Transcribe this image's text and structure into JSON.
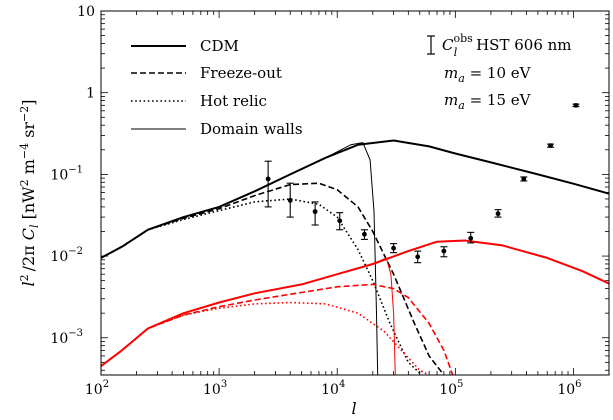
{
  "chart_data": {
    "type": "line",
    "xscale": "log",
    "yscale": "log",
    "xlim": [
      100,
      2000000
    ],
    "ylim": [
      0.00035,
      10
    ],
    "xlabel": "l",
    "ylabel": "l²/2π C_l [nW² m⁻⁴ sr⁻²]",
    "x_ticks": [
      {
        "value": 100,
        "label": "10",
        "exp": "2"
      },
      {
        "value": 1000,
        "label": "10",
        "exp": "3"
      },
      {
        "value": 10000,
        "label": "10",
        "exp": "4"
      },
      {
        "value": 100000,
        "label": "10",
        "exp": "5"
      },
      {
        "value": 1000000,
        "label": "10",
        "exp": "6"
      }
    ],
    "y_ticks": [
      {
        "value": 0.001,
        "label": "10",
        "exp": "−3"
      },
      {
        "value": 0.01,
        "label": "10",
        "exp": "−2"
      },
      {
        "value": 0.1,
        "label": "10",
        "exp": "−1"
      },
      {
        "value": 1,
        "label": "1",
        "exp": ""
      },
      {
        "value": 10,
        "label": "10",
        "exp": ""
      }
    ],
    "legend": {
      "placement": "top-left",
      "items": [
        {
          "label": "CDM",
          "style": "solid-thick"
        },
        {
          "label": "Freeze-out",
          "style": "dashed"
        },
        {
          "label": "Hot relic",
          "style": "dotted"
        },
        {
          "label": "Domain walls",
          "style": "solid-thin"
        }
      ]
    },
    "annotations": {
      "obs_label_base": "C",
      "obs_label_sup": "obs",
      "obs_label_sub": "l",
      "obs_label_rest": " HST 606 nm",
      "ma10_var": "m",
      "ma10_sub": "a",
      "ma10_rest": " = 10 eV",
      "ma15_var": "m",
      "ma15_sub": "a",
      "ma15_rest": " = 15 eV",
      "ma15_color": "#ff0000"
    },
    "series": [
      {
        "group": "10eV",
        "model": "CDM",
        "color": "#000000",
        "x": [
          100,
          150,
          250,
          500,
          1000,
          2000,
          4000,
          8000,
          15000,
          30000,
          60000,
          100000,
          200000,
          500000,
          1000000,
          2000000
        ],
        "y": [
          0.0095,
          0.013,
          0.021,
          0.03,
          0.04,
          0.062,
          0.1,
          0.16,
          0.23,
          0.26,
          0.22,
          0.18,
          0.14,
          0.1,
          0.077,
          0.058
        ]
      },
      {
        "group": "10eV",
        "model": "Freeze-out",
        "color": "#000000",
        "x": [
          100,
          150,
          250,
          500,
          1000,
          2000,
          4000,
          7000,
          10000,
          15000,
          20000,
          30000,
          45000,
          60000,
          80000
        ],
        "y": [
          0.0095,
          0.013,
          0.021,
          0.029,
          0.038,
          0.055,
          0.075,
          0.078,
          0.065,
          0.04,
          0.02,
          0.006,
          0.0015,
          0.0006,
          0.00035
        ]
      },
      {
        "group": "10eV",
        "model": "Hot relic",
        "color": "#000000",
        "x": [
          100,
          150,
          250,
          500,
          1000,
          2000,
          4000,
          7000,
          10000,
          15000,
          20000,
          28000,
          40000,
          52000
        ],
        "y": [
          0.0095,
          0.013,
          0.021,
          0.028,
          0.036,
          0.046,
          0.05,
          0.043,
          0.03,
          0.012,
          0.005,
          0.0015,
          0.0005,
          0.00035
        ]
      },
      {
        "group": "10eV",
        "model": "Domain walls",
        "color": "#000000",
        "x": [
          100,
          150,
          250,
          500,
          1000,
          2000,
          4000,
          8000,
          13000,
          16500,
          19000,
          20500,
          21500,
          22000
        ],
        "y": [
          0.0095,
          0.013,
          0.021,
          0.03,
          0.04,
          0.062,
          0.1,
          0.16,
          0.23,
          0.245,
          0.15,
          0.035,
          0.002,
          0.00035
        ]
      },
      {
        "group": "15eV",
        "model": "CDM",
        "color": "#ff0000",
        "x": [
          100,
          150,
          250,
          500,
          1000,
          2000,
          5000,
          10000,
          20000,
          40000,
          70000,
          120000,
          250000,
          600000,
          1200000,
          2000000
        ],
        "y": [
          0.00045,
          0.0007,
          0.0013,
          0.002,
          0.0027,
          0.0035,
          0.0045,
          0.006,
          0.008,
          0.0115,
          0.015,
          0.0155,
          0.0135,
          0.0095,
          0.0065,
          0.0046
        ]
      },
      {
        "group": "15eV",
        "model": "Freeze-out",
        "color": "#ff0000",
        "x": [
          100,
          150,
          250,
          500,
          1000,
          2000,
          4000,
          10000,
          20000,
          30000,
          40000,
          60000,
          80000,
          95000
        ],
        "y": [
          0.00045,
          0.0007,
          0.0013,
          0.0019,
          0.0024,
          0.0029,
          0.0034,
          0.0042,
          0.0045,
          0.004,
          0.0031,
          0.0015,
          0.0007,
          0.00035
        ]
      },
      {
        "group": "15eV",
        "model": "Hot relic",
        "color": "#ff0000",
        "x": [
          100,
          150,
          250,
          500,
          1000,
          2000,
          4000,
          8000,
          15000,
          25000,
          35000,
          50000,
          60000
        ],
        "y": [
          0.00045,
          0.0007,
          0.0013,
          0.0019,
          0.0023,
          0.0026,
          0.0027,
          0.0026,
          0.002,
          0.0012,
          0.0007,
          0.0004,
          0.00035
        ]
      },
      {
        "group": "15eV",
        "model": "Domain walls",
        "color": "#ff0000",
        "x": [
          100,
          150,
          250,
          500,
          1000,
          2000,
          5000,
          10000,
          20000,
          26000,
          28500,
          30000,
          31000
        ],
        "y": [
          0.00045,
          0.0007,
          0.0013,
          0.002,
          0.0027,
          0.0035,
          0.0045,
          0.006,
          0.008,
          0.0095,
          0.006,
          0.002,
          0.00035
        ]
      }
    ],
    "observations": {
      "name": "C_l^obs HST 606 nm",
      "points": [
        {
          "x": 2600,
          "y": 0.088,
          "ylo": 0.04,
          "yhi": 0.145
        },
        {
          "x": 4000,
          "y": 0.048,
          "ylo": 0.03,
          "yhi": 0.078
        },
        {
          "x": 6500,
          "y": 0.035,
          "ylo": 0.024,
          "yhi": 0.046
        },
        {
          "x": 10500,
          "y": 0.027,
          "ylo": 0.021,
          "yhi": 0.034
        },
        {
          "x": 17000,
          "y": 0.0185,
          "ylo": 0.016,
          "yhi": 0.021
        },
        {
          "x": 30000,
          "y": 0.0125,
          "ylo": 0.011,
          "yhi": 0.0142
        },
        {
          "x": 48000,
          "y": 0.0098,
          "ylo": 0.0083,
          "yhi": 0.0115
        },
        {
          "x": 80000,
          "y": 0.0115,
          "ylo": 0.0098,
          "yhi": 0.013
        },
        {
          "x": 135000,
          "y": 0.0165,
          "ylo": 0.0145,
          "yhi": 0.0195
        },
        {
          "x": 230000,
          "y": 0.033,
          "ylo": 0.03,
          "yhi": 0.037
        },
        {
          "x": 380000,
          "y": 0.088,
          "ylo": 0.083,
          "yhi": 0.093
        },
        {
          "x": 640000,
          "y": 0.225,
          "ylo": 0.215,
          "yhi": 0.235
        },
        {
          "x": 1050000,
          "y": 0.7,
          "ylo": 0.675,
          "yhi": 0.725
        }
      ]
    }
  }
}
